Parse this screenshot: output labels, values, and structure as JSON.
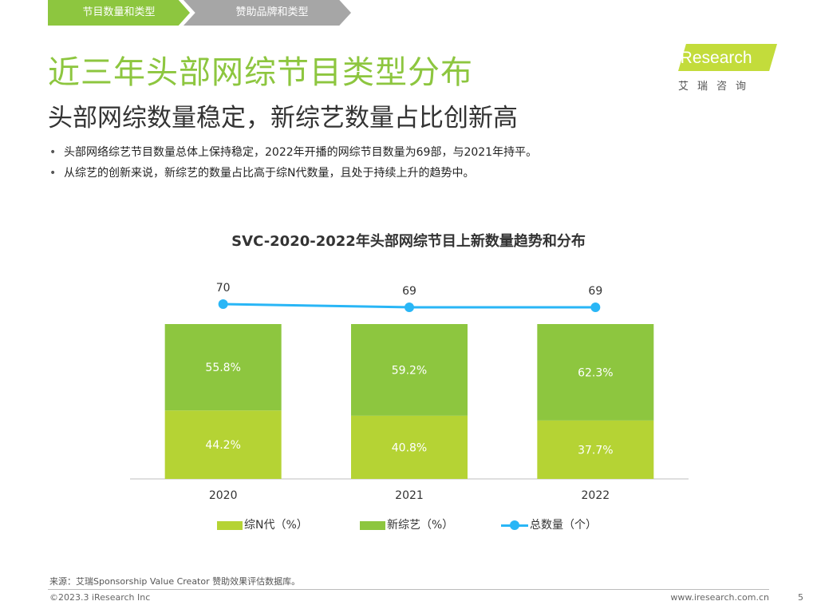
{
  "tabs": [
    "节目数量和类型",
    "赞助品牌和类型"
  ],
  "title": "近三年头部网综节目类型分布",
  "subtitle": "头部网综数量稳定，新综艺数量占比创新高",
  "bullets": [
    "头部网络综艺节目数量总体上保持稳定，2022年开播的网综节目数量为69部，与2021年持平。",
    "从综艺的创新来说，新综艺的数量占比高于综N代数量，且处于持续上升的趋势中。"
  ],
  "logo": {
    "text": "iResearch",
    "cn": "艾瑞咨询"
  },
  "chart_data": {
    "type": "bar",
    "title": "SVC-2020-2022年头部网综节目上新数量趋势和分布",
    "categories": [
      "2020",
      "2021",
      "2022"
    ],
    "series": [
      {
        "name": "综N代（%）",
        "values": [
          44.2,
          40.8,
          37.7
        ],
        "labels": [
          "44.2%",
          "40.8%",
          "37.7%"
        ],
        "color": "#b5d334"
      },
      {
        "name": "新综艺（%）",
        "values": [
          55.8,
          59.2,
          62.3
        ],
        "labels": [
          "55.8%",
          "59.2%",
          "62.3%"
        ],
        "color": "#8dc63f"
      }
    ],
    "line": {
      "name": "总数量（个）",
      "values": [
        70,
        69,
        69
      ],
      "color": "#29b6f6"
    },
    "stacked": true,
    "ylim": [
      0,
      100
    ]
  },
  "footer": {
    "source": "来源：艾瑞Sponsorship Value Creator 赞助效果评估数据库。",
    "copyright": "©2023.3 iResearch Inc",
    "url": "www.iresearch.com.cn",
    "page": "5"
  }
}
